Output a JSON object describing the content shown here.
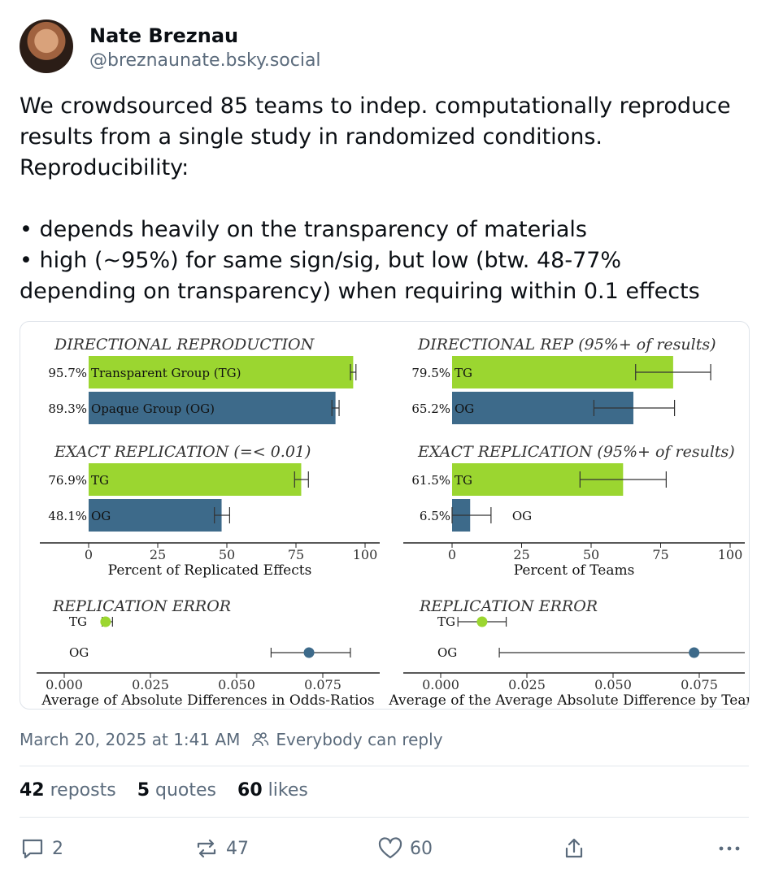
{
  "author": {
    "name": "Nate Breznau",
    "handle": "@breznaunate.bsky.social"
  },
  "post": {
    "lines": [
      "We crowdsourced 85 teams to indep. computationally reproduce",
      "results from a single study in randomized conditions.",
      "Reproducibility:",
      "",
      "• depends heavily on the transparency of materials",
      "• high (~95%) for same sign/sig, but low (btw. 48-77%",
      "depending on transparency) when requiring within 0.1 effects"
    ]
  },
  "colors": {
    "tg": "#9bd630",
    "og": "#3d6a8a",
    "muted": "#5b6b7c"
  },
  "chart_data": [
    {
      "type": "bar",
      "title": "DIRECTIONAL REPRODUCTION",
      "bars": [
        {
          "label": "Transparent Group (TG)",
          "value": 95.7,
          "value_label": "95.7%",
          "group": "tg",
          "err": [
            94.7,
            96.7
          ]
        },
        {
          "label": "Opaque Group (OG)",
          "value": 89.3,
          "value_label": "89.3%",
          "group": "og",
          "err": [
            88.0,
            90.6
          ]
        }
      ]
    },
    {
      "type": "bar",
      "title": "EXACT REPLICATION (=< 0.01)",
      "bars": [
        {
          "label": "TG",
          "value": 76.9,
          "value_label": "76.9%",
          "group": "tg",
          "err": [
            74.5,
            79.5
          ]
        },
        {
          "label": "OG",
          "value": 48.1,
          "value_label": "48.1%",
          "group": "og",
          "err": [
            45.5,
            51.0
          ]
        }
      ],
      "xlabel": "Percent of Replicated Effects",
      "xlim": [
        0,
        100
      ],
      "ticks": [
        "0",
        "25",
        "50",
        "75",
        "100"
      ]
    },
    {
      "type": "bar",
      "title": "DIRECTIONAL REP (95%+ of results)",
      "bars": [
        {
          "label": "TG",
          "value": 79.5,
          "value_label": "79.5%",
          "group": "tg",
          "err": [
            66.0,
            93.0
          ]
        },
        {
          "label": "OG",
          "value": 65.2,
          "value_label": "65.2%",
          "group": "og",
          "err": [
            51.0,
            80.0
          ]
        }
      ]
    },
    {
      "type": "bar",
      "title": "EXACT REPLICATION (95%+ of results)",
      "bars": [
        {
          "label": "TG",
          "value": 61.5,
          "value_label": "61.5%",
          "group": "tg",
          "err": [
            46.0,
            77.0
          ]
        },
        {
          "label": "OG",
          "value": 6.5,
          "value_label": "6.5%",
          "group": "og",
          "err": [
            0,
            14.0
          ]
        }
      ],
      "xlabel": "Percent of Teams",
      "xlim": [
        0,
        100
      ],
      "ticks": [
        "0",
        "25",
        "50",
        "75",
        "100"
      ]
    },
    {
      "type": "scatter",
      "title": "REPLICATION ERROR",
      "points": [
        {
          "label": "TG",
          "value": 0.012,
          "group": "tg",
          "err": [
            0.011,
            0.014
          ]
        },
        {
          "label": "OG",
          "value": 0.071,
          "group": "og",
          "err": [
            0.06,
            0.083
          ]
        }
      ],
      "xlabel": "Average of Absolute Differences in Odds-Ratios",
      "xlim": [
        -0.011,
        0.092
      ],
      "ticks": [
        "0.000",
        "0.025",
        "0.050",
        "0.075"
      ],
      "tick_values": [
        0,
        0.025,
        0.05,
        0.075
      ]
    },
    {
      "type": "scatter",
      "title": "REPLICATION ERROR",
      "points": [
        {
          "label": "TG",
          "value": 0.012,
          "group": "tg",
          "err": [
            0.005,
            0.019
          ]
        },
        {
          "label": "OG",
          "value": 0.0735,
          "group": "og",
          "err": [
            0.017,
            0.0975
          ]
        }
      ],
      "xlabel": "Average of the Average Absolute Difference by Team",
      "xlim": [
        -0.011,
        0.0975
      ],
      "ticks": [
        "0.000",
        "0.025",
        "0.050",
        "0.075"
      ],
      "tick_values": [
        0,
        0.025,
        0.05,
        0.075
      ]
    }
  ],
  "footer": {
    "timestamp": "March 20, 2025 at 1:41 AM",
    "reply_setting": "Everybody can reply",
    "reposts_count": "42",
    "reposts_label": "reposts",
    "quotes_count": "5",
    "quotes_label": "quotes",
    "likes_count": "60",
    "likes_label": "likes"
  },
  "actions": {
    "reply_count": "2",
    "repost_count": "47",
    "like_count": "60"
  }
}
